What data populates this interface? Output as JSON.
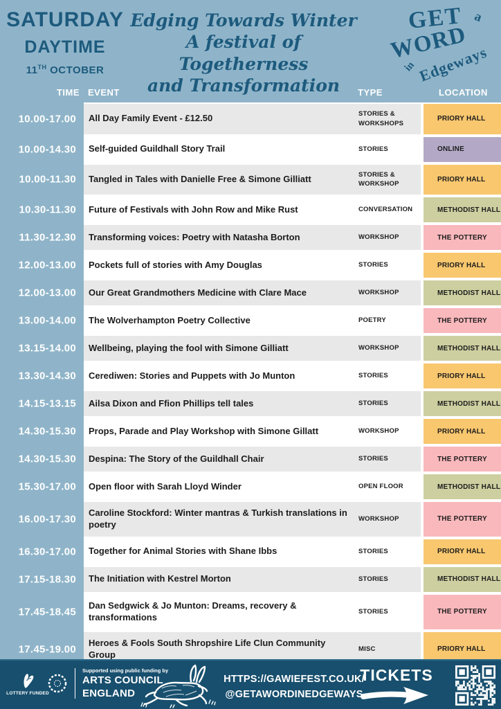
{
  "header": {
    "day": "SATURDAY",
    "period": "DAYTIME",
    "date_number": "11",
    "date_suffix": "TH",
    "date_month": " OCTOBER",
    "tagline_line1": "Edging Towards Winter",
    "tagline_line2": "A festival of Togetherness",
    "tagline_line3": "and Transformation",
    "logo": {
      "word1": "GET",
      "word2": "a",
      "word3": "WORD",
      "word4": "in",
      "word5": "Edgeways"
    }
  },
  "columns": {
    "time": "TIME",
    "event": "EVENT",
    "type": "TYPE",
    "location": "LOCATION"
  },
  "rows": [
    {
      "time": "10.00-17.00",
      "event": "All Day Family Event - £12.50",
      "type": "STORIES & WORKSHOPS",
      "location": "PRIORY HALL"
    },
    {
      "time": "10.00-14.30",
      "event": "Self-guided Guildhall Story Trail",
      "type": "STORIES",
      "location": "ONLINE"
    },
    {
      "time": "10.00-11.30",
      "event": "Tangled in Tales with Danielle Free & Simone Gilliatt",
      "type": "STORIES & WORKSHOP",
      "location": "PRIORY HALL"
    },
    {
      "time": "10.30-11.30",
      "event": "Future of Festivals with John Row and Mike Rust",
      "type": "CONVERSATION",
      "location": "METHODIST HALL"
    },
    {
      "time": "11.30-12.30",
      "event": "Transforming voices: Poetry with Natasha Borton",
      "type": "WORKSHOP",
      "location": "THE POTTERY"
    },
    {
      "time": "12.00-13.00",
      "event": "Pockets full of stories with Amy Douglas",
      "type": "STORIES",
      "location": "PRIORY HALL"
    },
    {
      "time": "12.00-13.00",
      "event": "Our Great Grandmothers Medicine with Clare Mace",
      "type": "WORKSHOP",
      "location": "METHODIST HALL"
    },
    {
      "time": "13.00-14.00",
      "event": "The Wolverhampton Poetry Collective",
      "type": "POETRY",
      "location": "THE POTTERY"
    },
    {
      "time": "13.15-14.00",
      "event": "Wellbeing, playing the fool with Simone Gilliatt",
      "type": "WORKSHOP",
      "location": "METHODIST HALL"
    },
    {
      "time": "13.30-14.30",
      "event": "Cerediwen: Stories and Puppets with Jo Munton",
      "type": "STORIES",
      "location": "PRIORY HALL"
    },
    {
      "time": "14.15-13.15",
      "event": "Ailsa Dixon and Ffion Phillips tell tales",
      "type": "STORIES",
      "location": "METHODIST HALL"
    },
    {
      "time": "14.30-15.30",
      "event": "Props, Parade and Play Workshop with Simone Gillatt",
      "type": "WORKSHOP",
      "location": "PRIORY HALL"
    },
    {
      "time": "14.30-15.30",
      "event": "Despina: The Story of the Guildhall Chair",
      "type": "STORIES",
      "location": "THE POTTERY"
    },
    {
      "time": "15.30-17.00",
      "event": "Open floor with Sarah Lloyd Winder",
      "type": "OPEN FLOOR",
      "location": "METHODIST HALL"
    },
    {
      "time": "16.00-17.30",
      "event": "Caroline Stockford: Winter mantras & Turkish translations in poetry",
      "type": "WORKSHOP",
      "location": "THE POTTERY"
    },
    {
      "time": "16.30-17.00",
      "event": "Together for Animal Stories with Shane Ibbs",
      "type": "STORIES",
      "location": "PRIORY HALL"
    },
    {
      "time": "17.15-18.30",
      "event": "The Initiation with Kestrel Morton",
      "type": "STORIES",
      "location": "METHODIST HALL"
    },
    {
      "time": "17.45-18.45",
      "event": "Dan Sedgwick & Jo Munton:  Dreams, recovery & transformations",
      "type": "STORIES",
      "location": "THE POTTERY"
    },
    {
      "time": "17.45-19.00",
      "event": "Heroes & Fools South Shropshire Life Clun Community Group",
      "type": "MISC",
      "location": "PRIORY HALL"
    }
  ],
  "footer": {
    "lottery_label": "LOTTERY FUNDED",
    "supported_by": "Supported using public funding by",
    "arts_line1": "ARTS COUNCIL",
    "arts_line2": "ENGLAND",
    "url_line1": "HTTPS://GAWIEFEST.CO.UK/",
    "url_line2": "@GETAWORDINEDGEWAYS",
    "tickets_label": "TICKETS"
  },
  "colors": {
    "page_blue": "#8fb4c9",
    "dark_blue": "#1d5a7d",
    "footer_blue": "#184f6e",
    "row_gray": "#e8e8e8",
    "row_white": "#ffffff",
    "location_colors": {
      "PRIORY HALL": "#f8c76e",
      "ONLINE": "#b3a9c6",
      "METHODIST HALL": "#cdcfa0",
      "THE POTTERY": "#f9b8bc"
    }
  }
}
